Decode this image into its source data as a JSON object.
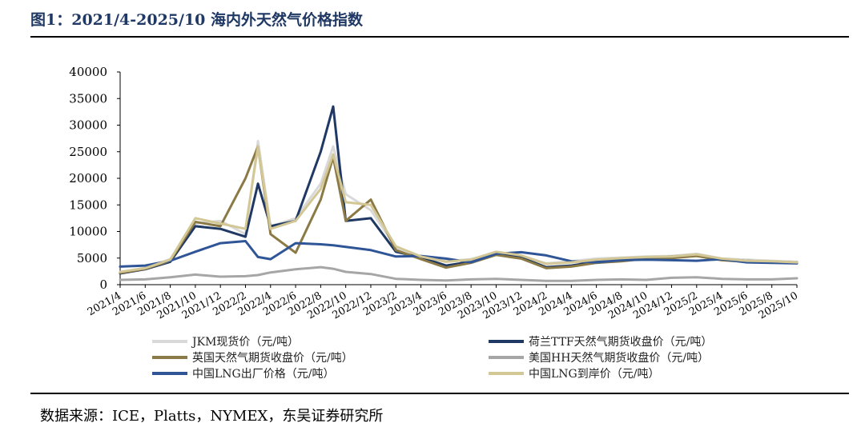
{
  "header": {
    "title": "图1：2021/4-2025/10 海内外天然气价格指数"
  },
  "footer": {
    "source": "数据来源：ICE，Platts，NYMEX，东吴证券研究所"
  },
  "chart_data": {
    "type": "line",
    "title": "",
    "xlabel": "",
    "ylabel": "",
    "ylim": [
      0,
      40000
    ],
    "yticks": [
      0,
      5000,
      10000,
      15000,
      20000,
      25000,
      30000,
      35000,
      40000
    ],
    "grid": false,
    "legend_position": "bottom",
    "x_tick_labels": [
      "2021/4",
      "2021/6",
      "2021/8",
      "2021/10",
      "2021/12",
      "2022/2",
      "2022/4",
      "2022/6",
      "2022/8",
      "2022/10",
      "2022/12",
      "2023/2",
      "2023/4",
      "2023/6",
      "2023/8",
      "2023/10",
      "2023/12",
      "2024/2",
      "2024/4",
      "2024/6",
      "2024/8",
      "2024/10",
      "2024/12",
      "2025/2",
      "2025/4",
      "2025/6",
      "2025/8",
      "2025/10"
    ],
    "x": [
      "2021/4",
      "2021/6",
      "2021/8",
      "2021/10",
      "2021/12",
      "2022/2",
      "2022/3",
      "2022/4",
      "2022/6",
      "2022/8",
      "2022/9",
      "2022/10",
      "2022/12",
      "2023/2",
      "2023/4",
      "2023/6",
      "2023/8",
      "2023/10",
      "2023/12",
      "2024/2",
      "2024/4",
      "2024/6",
      "2024/8",
      "2024/10",
      "2024/12",
      "2025/2",
      "2025/4",
      "2025/6",
      "2025/8",
      "2025/10"
    ],
    "series": [
      {
        "name": "JKM现货价（元/吨）",
        "color": "#d9d9d9",
        "width": 3,
        "values": [
          2300,
          3200,
          4800,
          11500,
          12000,
          9500,
          27000,
          11000,
          12500,
          19000,
          26000,
          17000,
          14000,
          7000,
          5200,
          4400,
          4800,
          6000,
          5400,
          4000,
          4400,
          4900,
          5100,
          5300,
          5400,
          5800,
          4900,
          4700,
          4500,
          4300
        ]
      },
      {
        "name": "荷兰TTF天然气期货收盘价（元/吨）",
        "color": "#1f3864",
        "width": 3,
        "values": [
          2100,
          2900,
          4300,
          11000,
          10500,
          9000,
          19000,
          11000,
          12000,
          25000,
          33500,
          12000,
          12500,
          6200,
          5100,
          3600,
          4300,
          5900,
          5100,
          3300,
          3600,
          4300,
          4600,
          5100,
          5300,
          5600,
          4800,
          4500,
          4300,
          4200
        ]
      },
      {
        "name": "英国天然气期货收盘价（元/吨）",
        "color": "#8c7a46",
        "width": 3,
        "values": [
          2200,
          3000,
          4500,
          11800,
          11000,
          20000,
          26000,
          9500,
          6000,
          16000,
          24000,
          12000,
          16000,
          6500,
          4800,
          3200,
          4100,
          5600,
          4900,
          3100,
          3400,
          4100,
          4400,
          4900,
          5000,
          5400,
          4600,
          4300,
          4200,
          4100
        ]
      },
      {
        "name": "美国HH天然气期货收盘价（元/吨）",
        "color": "#a6a6a6",
        "width": 3,
        "values": [
          900,
          1000,
          1400,
          1900,
          1500,
          1600,
          1800,
          2300,
          2900,
          3300,
          3000,
          2400,
          2000,
          1100,
          900,
          800,
          1000,
          1100,
          900,
          700,
          700,
          900,
          1000,
          900,
          1300,
          1400,
          1100,
          1000,
          1000,
          1200
        ]
      },
      {
        "name": "中国LNG出厂价格（元/吨）",
        "color": "#2f5597",
        "width": 3,
        "values": [
          3400,
          3600,
          4500,
          6200,
          7800,
          8200,
          5200,
          4800,
          7800,
          7600,
          7400,
          7100,
          6500,
          5300,
          5400,
          4900,
          4200,
          5800,
          6100,
          5500,
          4400,
          4200,
          4600,
          4700,
          4600,
          4500,
          4800,
          4200,
          4100,
          4000
        ]
      },
      {
        "name": "中国LNG到岸价（元/吨）",
        "color": "#d3c796",
        "width": 3,
        "values": [
          2400,
          3100,
          4700,
          12500,
          11500,
          10500,
          26000,
          10500,
          12000,
          18000,
          24500,
          15500,
          15000,
          7200,
          5300,
          4300,
          4700,
          6200,
          5500,
          3900,
          4200,
          4700,
          5000,
          5200,
          5300,
          5700,
          4900,
          4500,
          4400,
          4200
        ]
      }
    ]
  }
}
